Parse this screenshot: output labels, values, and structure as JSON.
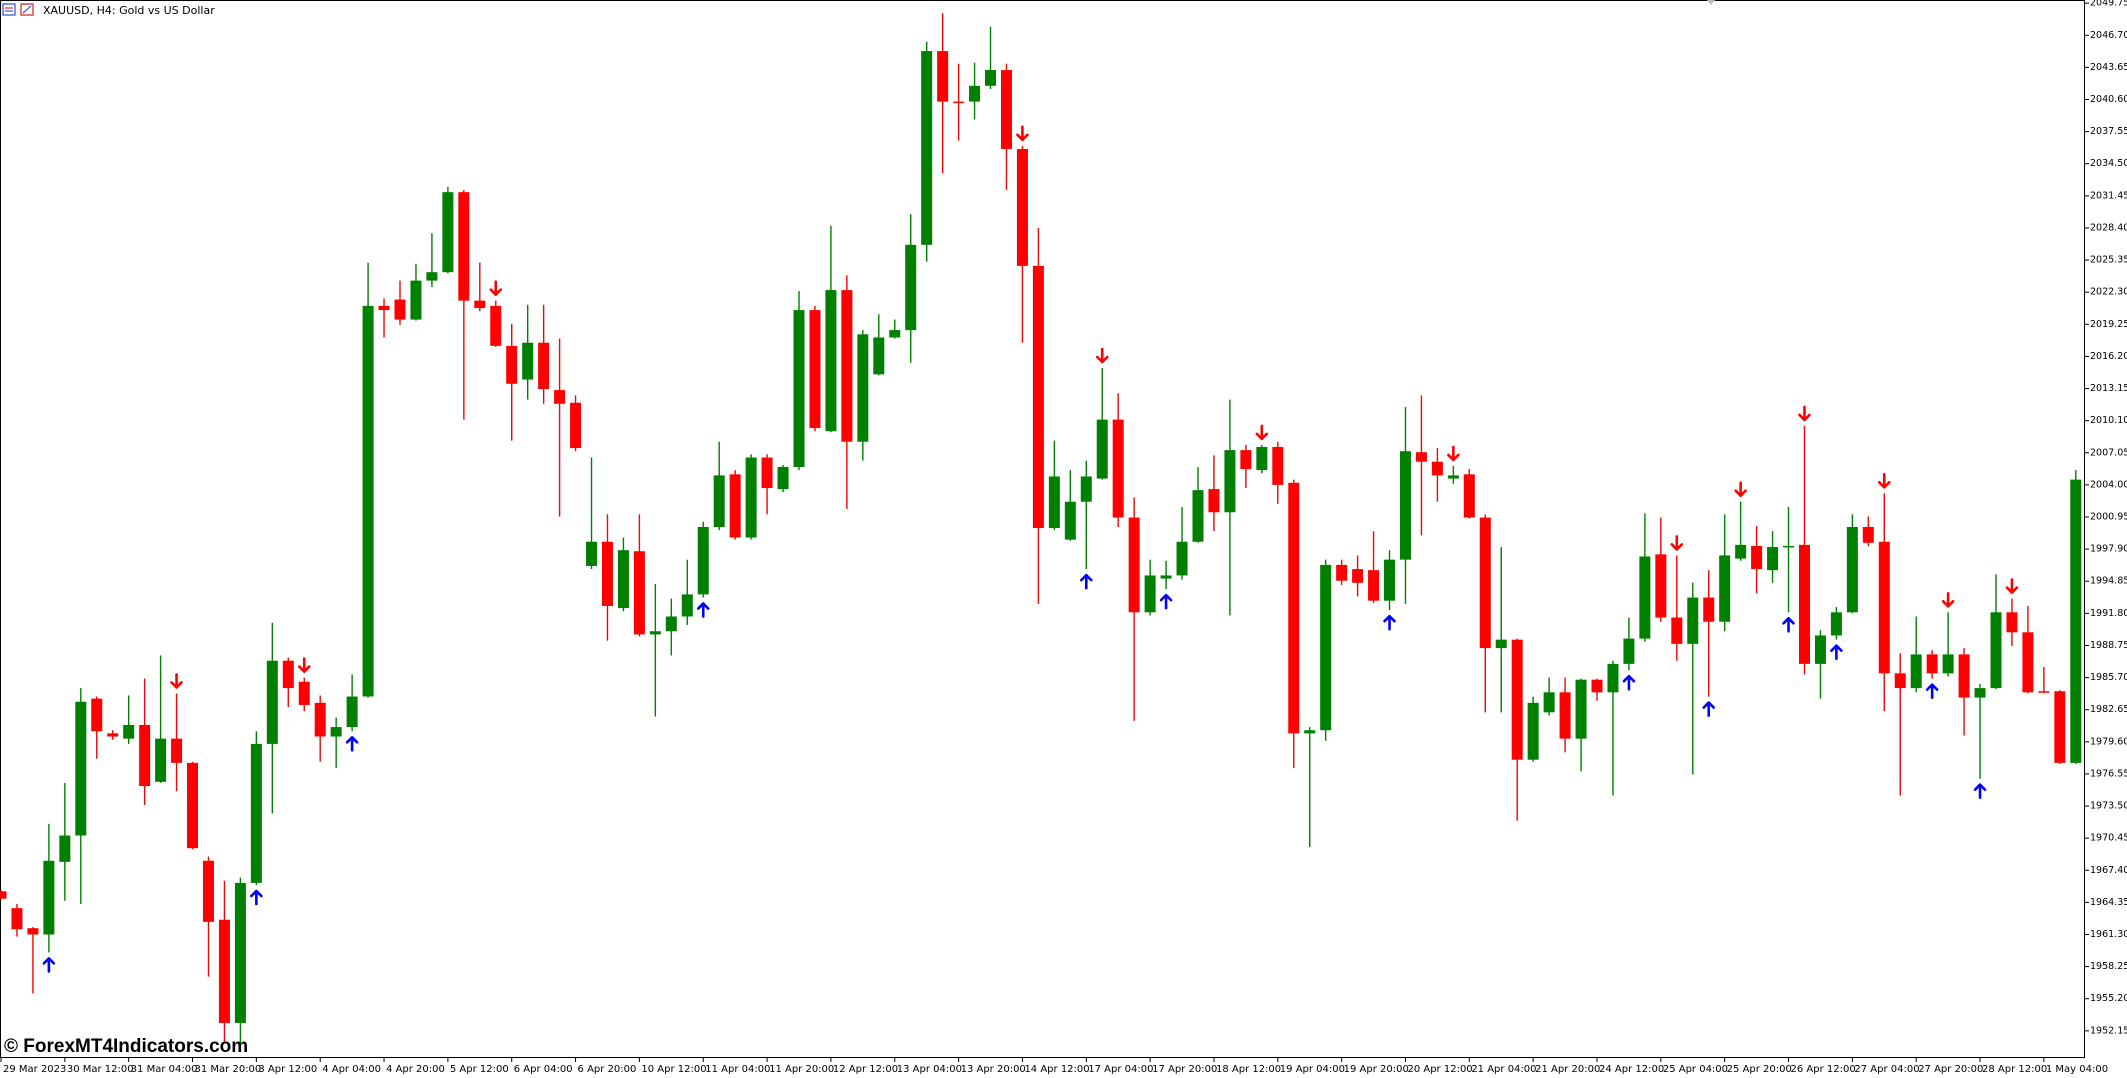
{
  "chart_data": {
    "type": "candlestick",
    "title": "XAUUSD, H4:  Gold vs US Dollar",
    "watermark": "© ForexMT4Indicators.com",
    "up_color": "#008000",
    "down_color": "#ff0000",
    "buy_color": "#0000ff",
    "sell_color": "#ff0000",
    "categories": [
      "29 Mar 2023",
      null,
      null,
      null,
      "30 Mar 12:00",
      null,
      null,
      null,
      "31 Mar 04:00",
      null,
      null,
      null,
      "31 Mar 20:00",
      null,
      null,
      null,
      "3 Apr 12:00",
      null,
      null,
      null,
      "4 Apr 04:00",
      null,
      null,
      null,
      "4 Apr 20:00",
      null,
      null,
      null,
      "5 Apr 12:00",
      null,
      null,
      null,
      "6 Apr 04:00",
      null,
      null,
      null,
      "6 Apr 20:00",
      null,
      null,
      null,
      "10 Apr 12:00",
      null,
      null,
      null,
      "11 Apr 04:00",
      null,
      null,
      null,
      "11 Apr 20:00",
      null,
      null,
      null,
      "12 Apr 12:00",
      null,
      null,
      null,
      "13 Apr 04:00",
      null,
      null,
      null,
      "13 Apr 20:00",
      null,
      null,
      null,
      "14 Apr 12:00",
      null,
      null,
      null,
      "17 Apr 04:00",
      null,
      null,
      null,
      "17 Apr 20:00",
      null,
      null,
      null,
      "18 Apr 12:00",
      null,
      null,
      null,
      "19 Apr 04:00",
      null,
      null,
      null,
      "19 Apr 20:00",
      null,
      null,
      null,
      "20 Apr 12:00",
      null,
      null,
      null,
      "21 Apr 04:00",
      null,
      null,
      null,
      "21 Apr 20:00",
      null,
      null,
      null,
      "24 Apr 12:00",
      null,
      null,
      null,
      "25 Apr 04:00",
      null,
      null,
      null,
      "25 Apr 20:00",
      null,
      null,
      null,
      "26 Apr 12:00",
      null,
      null,
      null,
      "27 Apr 04:00",
      null,
      null,
      null,
      "27 Apr 20:00",
      null,
      null,
      null,
      "28 Apr 12:00",
      null,
      null,
      null,
      "1 May 04:00",
      null,
      null
    ],
    "open": [
      1965.4,
      1963.8,
      1961.9,
      1961.3,
      1968.2,
      1970.7,
      1983.7,
      1980.4,
      1979.9,
      1981.2,
      1975.8,
      1979.9,
      1977.6,
      1968.3,
      1962.7,
      1952.9,
      1966.2,
      1979.4,
      1987.3,
      1985.3,
      1983.3,
      1980.1,
      1981.0,
      1983.9,
      2021.0,
      2021.6,
      2019.7,
      2023.4,
      2024.2,
      2031.8,
      2021.5,
      2021.0,
      2017.2,
      2014.0,
      2017.5,
      2013.0,
      2011.8,
      1996.3,
      1998.6,
      1992.3,
      1997.7,
      1989.8,
      1990.1,
      1991.5,
      1993.6,
      2000.0,
      2005.0,
      1999.0,
      2006.6,
      2003.6,
      2005.7,
      2020.6,
      2009.1,
      2022.5,
      2008.1,
      2014.5,
      2018.0,
      2018.7,
      2026.8,
      2045.2,
      2040.4,
      2040.4,
      2041.9,
      2043.4,
      2035.9,
      2024.8,
      1999.9,
      1998.8,
      2002.4,
      2004.6,
      2010.2,
      2000.9,
      1991.9,
      1995.1,
      1995.4,
      1998.6,
      2003.6,
      2001.4,
      2007.3,
      2005.4,
      2007.6,
      2004.2,
      1980.4,
      1980.7,
      1996.4,
      1996.0,
      1995.9,
      1993.0,
      1996.9,
      2007.1,
      2006.2,
      2004.6,
      2005.0,
      2000.9,
      1988.5,
      1989.3,
      1977.9,
      1982.4,
      1984.3,
      1979.9,
      1985.5,
      1984.3,
      1987.0,
      1989.4,
      1997.4,
      1991.4,
      1988.9,
      1993.3,
      1991.0,
      1997.0,
      1998.2,
      1995.9,
      1998.1,
      1998.3,
      1987.0,
      1989.7,
      1991.9,
      2000.0,
      1998.6,
      1986.1,
      1984.7,
      1987.9,
      1986.1,
      1987.9,
      1983.8,
      1984.7,
      1991.9,
      1990.0,
      1984.4,
      1984.4,
      1977.6
    ],
    "high": [
      1965.5,
      1964.2,
      1962.0,
      1971.8,
      1975.7,
      1984.7,
      1983.9,
      1980.7,
      1984.0,
      1985.6,
      1987.8,
      1984.2,
      1977.7,
      1968.7,
      1966.4,
      1966.7,
      1980.6,
      1990.9,
      1987.6,
      1985.7,
      1984.0,
      1981.9,
      1986.0,
      2025.1,
      2021.7,
      2023.4,
      2025.0,
      2027.9,
      2032.3,
      2032.0,
      2025.1,
      2021.5,
      2019.3,
      2021.1,
      2021.1,
      2017.9,
      2012.5,
      2006.6,
      2001.2,
      1999.0,
      2001.2,
      1994.6,
      1993.2,
      1996.9,
      2000.5,
      2008.1,
      2005.4,
      2006.9,
      2006.9,
      2005.9,
      2022.4,
      2021.0,
      2028.6,
      2023.9,
      2018.7,
      2020.2,
      2019.7,
      2029.7,
      2046.1,
      2048.8,
      2044.0,
      2044.1,
      2047.5,
      2044.0,
      2036.2,
      2028.4,
      2008.2,
      2005.4,
      2006.3,
      2015.1,
      2012.7,
      2002.8,
      1996.9,
      1996.8,
      2001.9,
      2005.7,
      2006.8,
      2012.1,
      2007.8,
      2007.8,
      2008.1,
      2004.5,
      1981.0,
      1996.9,
      1996.9,
      1997.3,
      1999.6,
      1997.8,
      2011.4,
      2012.5,
      2007.5,
      2005.8,
      2005.5,
      2001.2,
      1998.1,
      1989.4,
      1983.9,
      1985.7,
      1985.7,
      1985.6,
      1985.6,
      1987.3,
      1991.4,
      2001.3,
      2000.9,
      1997.3,
      1994.7,
      1995.9,
      2001.2,
      2002.4,
      2000.1,
      1999.6,
      2001.9,
      2009.6,
      1990.2,
      1992.4,
      2001.2,
      2001.0,
      2003.2,
      1988.0,
      1991.5,
      1988.3,
      1991.9,
      1988.5,
      1985.1,
      1995.5,
      1993.2,
      1992.5,
      1986.7,
      1984.5,
      2005.4
    ],
    "low": [
      1964.6,
      1961.1,
      1955.7,
      1959.6,
      1964.5,
      1964.2,
      1978.0,
      1979.8,
      1979.4,
      1973.6,
      1975.7,
      1974.9,
      1969.4,
      1957.3,
      1951.0,
      1951.0,
      1966.0,
      1972.8,
      1982.9,
      1982.5,
      1977.7,
      1977.1,
      1980.6,
      1983.8,
      2018.0,
      2019.2,
      2019.6,
      2022.8,
      2024.1,
      2010.2,
      2020.5,
      2017.1,
      2008.2,
      2012.1,
      2011.7,
      2001.0,
      2007.2,
      1996.0,
      1989.2,
      1992.0,
      1989.6,
      1982.0,
      1987.8,
      1990.7,
      1993.3,
      1999.7,
      1998.8,
      1998.8,
      2001.2,
      2003.3,
      2005.4,
      2009.1,
      2009.0,
      2001.7,
      2006.3,
      2014.4,
      2017.9,
      2015.6,
      2025.2,
      2033.6,
      2036.7,
      2038.7,
      2041.6,
      2032.0,
      2017.5,
      1992.7,
      1999.7,
      1998.7,
      1996.0,
      2004.5,
      2000.0,
      1981.6,
      1991.6,
      1994.1,
      1995.0,
      1998.5,
      1999.6,
      1991.6,
      2003.7,
      2005.1,
      2002.2,
      1977.1,
      1969.6,
      1979.7,
      1994.5,
      1993.4,
      1992.8,
      1992.1,
      1992.7,
      1999.2,
      2002.4,
      2004.1,
      2000.8,
      1982.4,
      1982.4,
      1972.1,
      1977.7,
      1982.1,
      1978.6,
      1976.8,
      1983.5,
      1974.5,
      1986.4,
      1989.1,
      1991.0,
      1987.3,
      1976.5,
      1983.9,
      1990.1,
      1996.8,
      1993.7,
      1994.7,
      1991.9,
      1986.0,
      1983.7,
      1989.3,
      1991.8,
      1998.2,
      1982.5,
      1974.5,
      1984.3,
      1985.6,
      1985.8,
      1980.2,
      1976.1,
      1984.6,
      1988.7,
      1984.2,
      1984.2,
      1977.5,
      1977.5
    ],
    "close": [
      1964.7,
      1961.8,
      1961.3,
      1968.3,
      1970.7,
      1983.4,
      1980.6,
      1980.1,
      1981.2,
      1975.4,
      1979.9,
      1977.6,
      1969.5,
      1962.5,
      1952.9,
      1966.2,
      1979.4,
      1987.3,
      1984.7,
      1983.1,
      1980.1,
      1981.0,
      1983.9,
      2021.0,
      2020.6,
      2019.7,
      2023.4,
      2024.2,
      2031.8,
      2021.5,
      2020.8,
      2017.2,
      2013.6,
      2017.5,
      2013.1,
      2011.7,
      2007.5,
      1998.6,
      1992.5,
      1997.8,
      1989.8,
      1990.1,
      1991.5,
      1993.6,
      2000.0,
      2004.9,
      1999.0,
      2006.6,
      2003.7,
      2005.7,
      2020.6,
      2009.4,
      2022.5,
      2008.1,
      2018.3,
      2018.0,
      2018.7,
      2026.8,
      2045.2,
      2040.4,
      2040.3,
      2041.9,
      2043.4,
      2035.9,
      2024.8,
      1999.9,
      2004.8,
      2002.4,
      2004.8,
      2010.2,
      2000.9,
      1991.9,
      1995.4,
      1995.4,
      1998.6,
      2003.5,
      2001.4,
      2007.3,
      2005.5,
      2007.6,
      2004.0,
      1980.4,
      1980.7,
      1996.4,
      1994.9,
      1994.7,
      1993.0,
      1996.9,
      2007.2,
      2006.2,
      2004.9,
      2004.9,
      2000.9,
      1988.5,
      1989.3,
      1977.9,
      1983.3,
      1984.3,
      1979.9,
      1985.5,
      1984.3,
      1987.0,
      1989.4,
      1997.2,
      1991.4,
      1988.9,
      1993.3,
      1991.0,
      1997.3,
      1998.3,
      1996.0,
      1998.1,
      1998.2,
      1987.0,
      1989.7,
      1991.9,
      2000.0,
      1998.5,
      1986.1,
      1984.7,
      1987.9,
      1986.1,
      1987.9,
      1983.8,
      1984.7,
      1991.9,
      1990.0,
      1984.3,
      1984.3,
      1977.6,
      2004.5
    ],
    "buy_signals": [
      3,
      16,
      22,
      44,
      68,
      73,
      87,
      102,
      107,
      112,
      115,
      121,
      124
    ],
    "sell_signals": [
      11,
      19,
      31,
      64,
      69,
      79,
      91,
      105,
      109,
      113,
      118,
      122,
      126
    ],
    "ylim": [
      1949.57,
      2050.05
    ],
    "yticks": [
      2049.75,
      {
        "value": 2046.7,
        "label": "2046.70"
      },
      2043.65,
      {
        "value": 2040.6,
        "label": "2040.60"
      },
      2037.55,
      {
        "value": 2034.5,
        "label": "2034.50"
      },
      2031.45,
      {
        "value": 2028.4,
        "label": "2028.40"
      },
      2025.35,
      {
        "value": 2022.3,
        "label": "2022.30"
      },
      2019.25,
      {
        "value": 2016.2,
        "label": "2016.20"
      },
      2013.15,
      {
        "value": 2010.1,
        "label": "2010.10"
      },
      2007.05,
      {
        "value": 2004,
        "label": "2004.00"
      },
      2000.95,
      {
        "value": 1997.9,
        "label": "1997.90"
      },
      1994.85,
      {
        "value": 1991.8,
        "label": "1991.80"
      },
      1988.75,
      {
        "value": 1985.7,
        "label": "1985.70"
      },
      1982.65,
      {
        "value": 1979.6,
        "label": "1979.60"
      },
      1976.55,
      {
        "value": 1973.5,
        "label": "1973.50"
      },
      1970.45,
      {
        "value": 1967.4,
        "label": "1967.40"
      },
      1964.35,
      {
        "value": 1961.3,
        "label": "1961.30"
      },
      1958.25,
      {
        "value": 1955.2,
        "label": "1955.20"
      },
      1952.15
    ],
    "grid": false
  }
}
